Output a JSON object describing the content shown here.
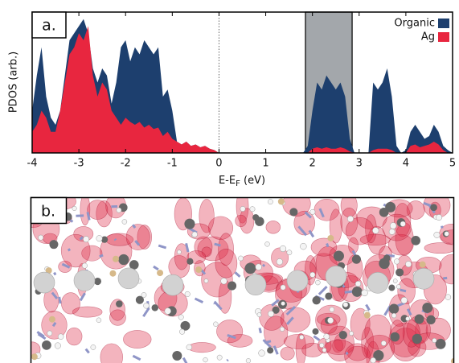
{
  "chart_data": {
    "type": "area",
    "panel_label": "a.",
    "ylabel": "PDOS (arb.)",
    "xlabel": "E-E",
    "xlabel_sub": "F",
    "xlabel_suffix": " (eV)",
    "x": [
      -4.0,
      -3.9,
      -3.8,
      -3.7,
      -3.6,
      -3.5,
      -3.4,
      -3.3,
      -3.2,
      -3.1,
      -3.0,
      -2.9,
      -2.8,
      -2.7,
      -2.6,
      -2.5,
      -2.4,
      -2.3,
      -2.2,
      -2.1,
      -2.0,
      -1.9,
      -1.8,
      -1.7,
      -1.6,
      -1.5,
      -1.4,
      -1.3,
      -1.2,
      -1.1,
      -1.0,
      -0.9,
      -0.8,
      -0.7,
      -0.6,
      -0.5,
      -0.4,
      -0.3,
      -0.2,
      -0.1,
      0.0,
      0.1,
      0.2,
      0.3,
      0.4,
      0.5,
      0.6,
      0.7,
      0.8,
      0.9,
      1.0,
      1.1,
      1.2,
      1.3,
      1.4,
      1.5,
      1.6,
      1.7,
      1.8,
      1.9,
      2.0,
      2.1,
      2.2,
      2.3,
      2.4,
      2.5,
      2.6,
      2.7,
      2.8,
      2.9,
      3.0,
      3.1,
      3.2,
      3.3,
      3.4,
      3.5,
      3.6,
      3.7,
      3.8,
      3.9,
      4.0,
      4.1,
      4.2,
      4.3,
      4.4,
      4.5,
      4.6,
      4.7,
      4.8,
      4.9,
      5.0
    ],
    "series": [
      {
        "name": "Organic",
        "color": "#1d3f6e",
        "values": [
          0.3,
          0.55,
          0.75,
          0.4,
          0.25,
          0.2,
          0.3,
          0.55,
          0.8,
          0.85,
          0.9,
          0.95,
          0.85,
          0.6,
          0.5,
          0.6,
          0.55,
          0.35,
          0.5,
          0.75,
          0.8,
          0.65,
          0.75,
          0.7,
          0.8,
          0.75,
          0.7,
          0.75,
          0.4,
          0.45,
          0.3,
          0.08,
          0.06,
          0.08,
          0.05,
          0.06,
          0.04,
          0.05,
          0.03,
          0.02,
          0,
          0,
          0,
          0,
          0,
          0,
          0,
          0,
          0,
          0,
          0,
          0,
          0,
          0,
          0,
          0,
          0,
          0,
          0,
          0.05,
          0.3,
          0.5,
          0.45,
          0.55,
          0.5,
          0.45,
          0.5,
          0.4,
          0.1,
          0,
          0,
          0,
          0,
          0.5,
          0.45,
          0.5,
          0.6,
          0.4,
          0.05,
          0,
          0.02,
          0.15,
          0.2,
          0.15,
          0.1,
          0.12,
          0.2,
          0.15,
          0.05,
          0.02,
          0
        ]
      },
      {
        "name": "Ag",
        "color": "#e8263f",
        "values": [
          0.15,
          0.2,
          0.3,
          0.25,
          0.15,
          0.15,
          0.3,
          0.5,
          0.7,
          0.75,
          0.85,
          0.8,
          0.9,
          0.55,
          0.4,
          0.5,
          0.45,
          0.3,
          0.25,
          0.2,
          0.25,
          0.22,
          0.2,
          0.22,
          0.18,
          0.2,
          0.17,
          0.18,
          0.12,
          0.15,
          0.1,
          0.08,
          0.06,
          0.08,
          0.05,
          0.06,
          0.04,
          0.05,
          0.03,
          0.02,
          0,
          0,
          0,
          0,
          0,
          0,
          0,
          0,
          0,
          0,
          0,
          0,
          0,
          0,
          0,
          0,
          0,
          0,
          0,
          0,
          0.03,
          0.04,
          0.03,
          0.04,
          0.03,
          0.03,
          0.04,
          0.03,
          0.01,
          0,
          0,
          0,
          0,
          0.02,
          0.03,
          0.03,
          0.03,
          0.02,
          0,
          0,
          0,
          0.05,
          0.06,
          0.04,
          0.05,
          0.06,
          0.08,
          0.06,
          0.02,
          0,
          0
        ]
      }
    ],
    "xlim": [
      -4,
      5
    ],
    "xticks": [
      -4,
      -3,
      -2,
      -1,
      0,
      1,
      2,
      3,
      4,
      5
    ],
    "ylim": [
      0,
      1
    ],
    "fermi_level": 0,
    "shaded_region": [
      1.85,
      2.85
    ],
    "shaded_color": "#a3a7ab",
    "legend": "top-right"
  },
  "image_panel": {
    "panel_label": "b."
  }
}
